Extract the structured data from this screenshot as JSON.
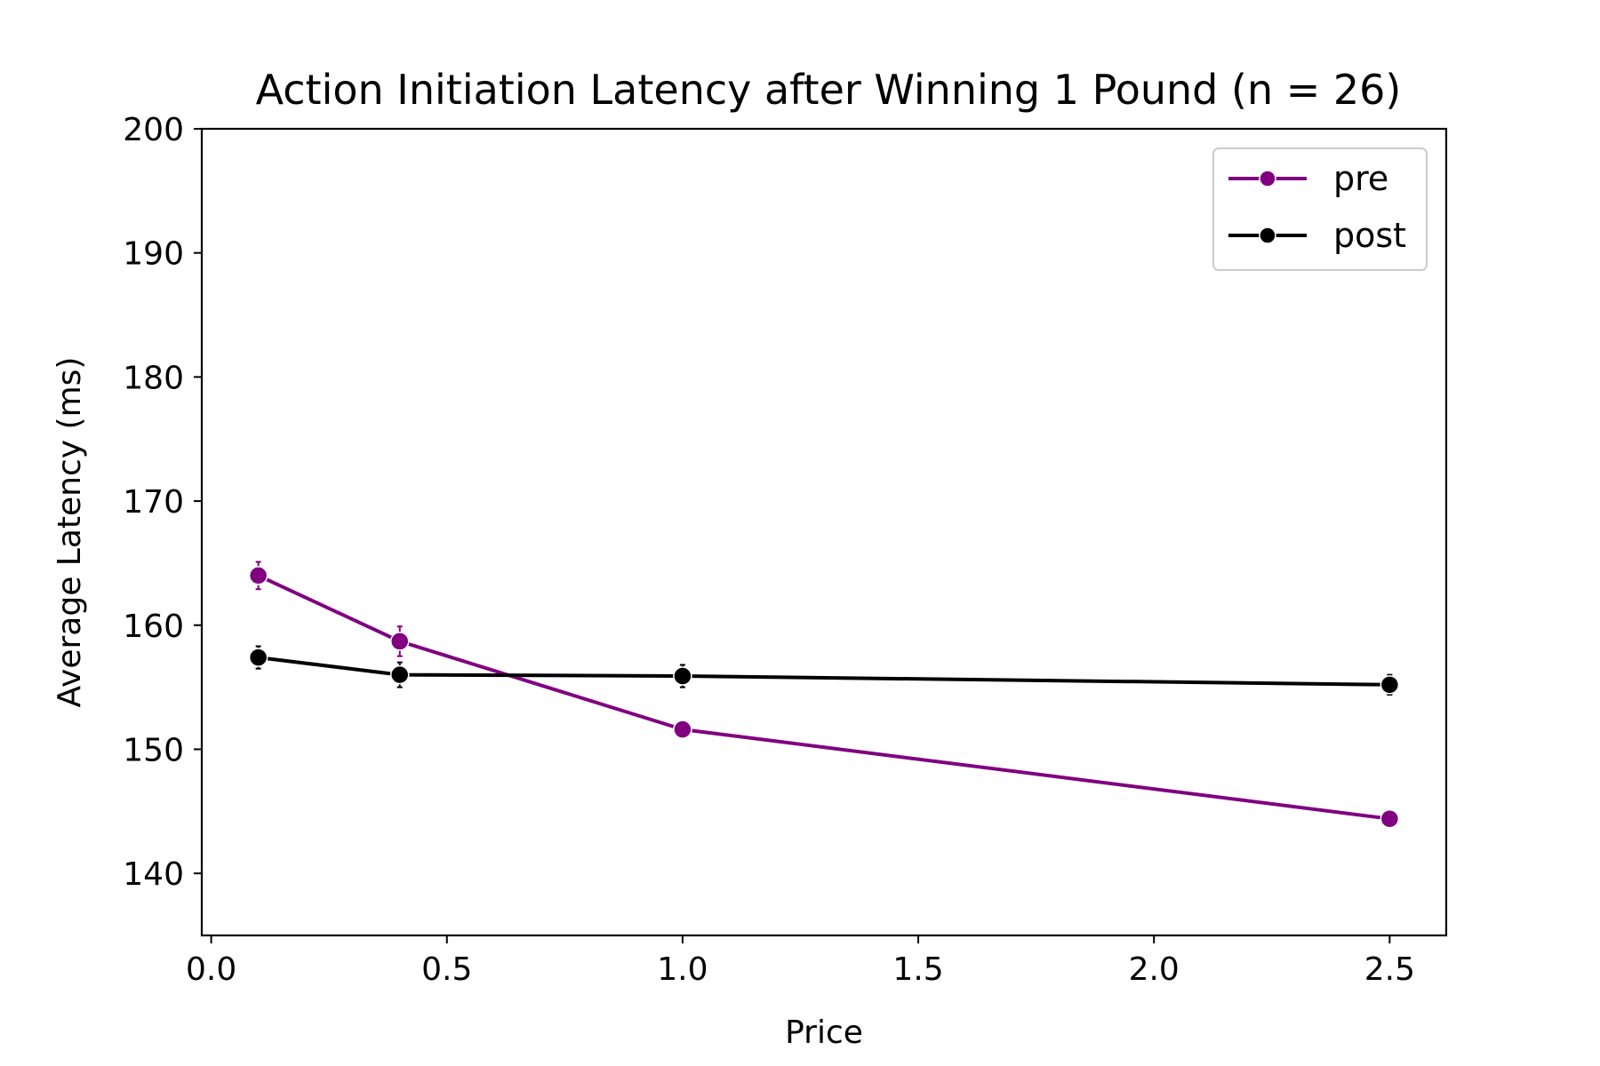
{
  "chart_data": {
    "type": "line",
    "title": "Action Initiation Latency after Winning 1 Pound (n = 26)",
    "xlabel": "Price",
    "ylabel": "Average Latency (ms)",
    "xlim": [
      -0.02,
      2.62
    ],
    "ylim": [
      135,
      200
    ],
    "xticks": [
      0.0,
      0.5,
      1.0,
      1.5,
      2.0,
      2.5
    ],
    "xtick_labels": [
      "0.0",
      "0.5",
      "1.0",
      "1.5",
      "2.0",
      "2.5"
    ],
    "yticks": [
      140,
      150,
      160,
      170,
      180,
      190,
      200
    ],
    "ytick_labels": [
      "140",
      "150",
      "160",
      "170",
      "180",
      "190",
      "200"
    ],
    "grid": false,
    "legend_position": "top-right",
    "x": [
      0.1,
      0.4,
      1.0,
      2.5
    ],
    "series": [
      {
        "name": "pre",
        "color": "#800080",
        "values": [
          164.0,
          158.7,
          151.6,
          144.4
        ],
        "error": [
          1.1,
          1.2,
          0.5,
          0.4
        ]
      },
      {
        "name": "post",
        "color": "#000000",
        "values": [
          157.4,
          156.0,
          155.9,
          155.2
        ],
        "error": [
          0.9,
          1.0,
          0.9,
          0.8
        ]
      }
    ]
  }
}
